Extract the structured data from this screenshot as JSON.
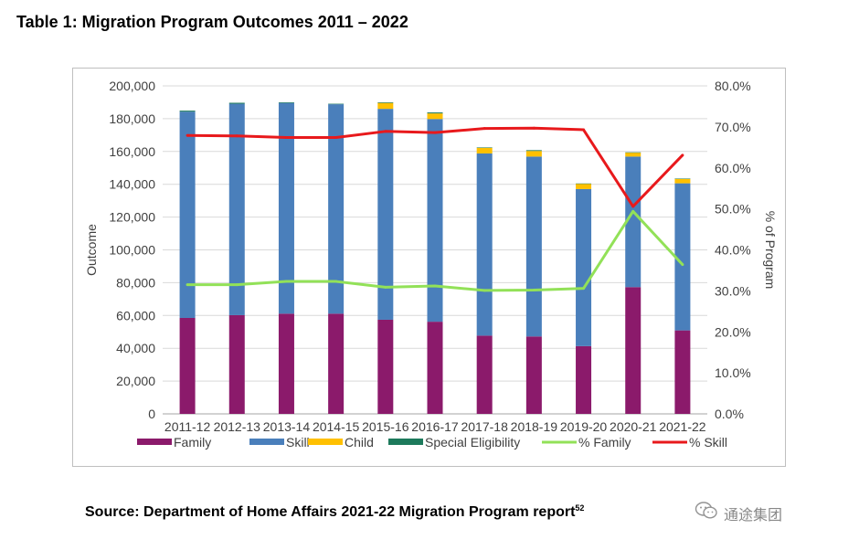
{
  "page": {
    "title": "Table 1: Migration Program Outcomes 2011 – 2022",
    "source": "Source: Department of Home Affairs 2021-22 Migration Program report",
    "source_footnote": "52",
    "watermark_text": "通途集团",
    "watermark_icon": "wechat-icon"
  },
  "chart_data": {
    "type": "bar",
    "stacked": true,
    "categories": [
      "2011-12",
      "2012-13",
      "2013-14",
      "2014-15",
      "2015-16",
      "2016-17",
      "2017-18",
      "2018-19",
      "2019-20",
      "2020-21",
      "2021-22"
    ],
    "series": [
      {
        "name": "Family",
        "axis": "left",
        "color": "#8b1a6b",
        "values": [
          58500,
          60200,
          61100,
          61100,
          57400,
          56200,
          47700,
          47200,
          41300,
          77300,
          50900
        ]
      },
      {
        "name": "Skill",
        "axis": "left",
        "color": "#4a7fbb",
        "values": [
          125800,
          128900,
          128500,
          127700,
          128600,
          123600,
          111100,
          109700,
          95800,
          79600,
          89700
        ]
      },
      {
        "name": "Child",
        "axis": "left",
        "color": "#ffc000",
        "values": [
          0,
          0,
          0,
          0,
          3600,
          3400,
          3400,
          3400,
          3200,
          2400,
          2700
        ]
      },
      {
        "name": "Special Eligibility",
        "axis": "left",
        "color": "#1d7a5c",
        "values": [
          600,
          600,
          400,
          300,
          400,
          600,
          300,
          500,
          200,
          200,
          200
        ]
      },
      {
        "name": "% Family",
        "type": "line",
        "axis": "right",
        "color": "#92e158",
        "values": [
          31.5,
          31.5,
          32.3,
          32.3,
          30.9,
          31.2,
          30.1,
          30.2,
          30.6,
          49.4,
          36.4
        ]
      },
      {
        "name": "% Skill",
        "type": "line",
        "axis": "right",
        "color": "#e8191c",
        "values": [
          67.9,
          67.8,
          67.4,
          67.4,
          68.9,
          68.6,
          69.6,
          69.7,
          69.3,
          50.6,
          63.1
        ]
      }
    ],
    "ylabel": "Outcome",
    "y2label": "% of Program",
    "ylim": [
      0,
      200000
    ],
    "y2lim": [
      0,
      80
    ],
    "yticks": [
      "0",
      "20,000",
      "40,000",
      "60,000",
      "80,000",
      "100,000",
      "120,000",
      "140,000",
      "160,000",
      "180,000",
      "200,000"
    ],
    "y2ticks": [
      "0.0%",
      "10.0%",
      "20.0%",
      "30.0%",
      "40.0%",
      "50.0%",
      "60.0%",
      "70.0%",
      "80.0%"
    ],
    "grid": "horizontal",
    "legend_position": "bottom"
  }
}
